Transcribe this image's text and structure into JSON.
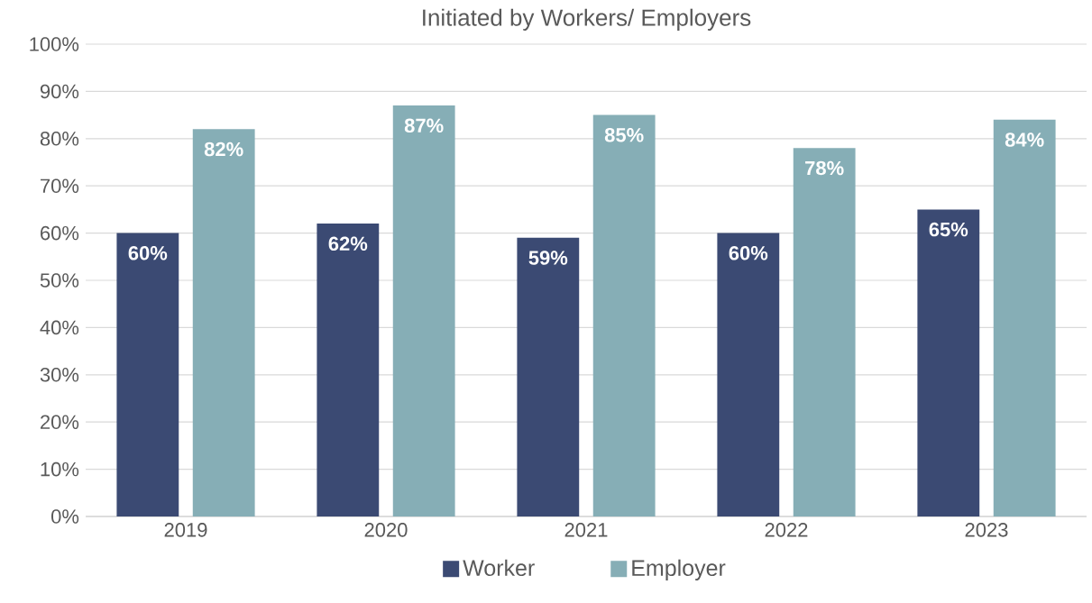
{
  "chart_data": {
    "type": "bar",
    "title": "Initiated by Workers/ Employers",
    "categories": [
      "2019",
      "2020",
      "2021",
      "2022",
      "2023"
    ],
    "series": [
      {
        "name": "Worker",
        "color": "#3b4a73",
        "values": [
          60,
          62,
          59,
          60,
          65
        ],
        "value_labels": [
          "60%",
          "62%",
          "59%",
          "60%",
          "65%"
        ]
      },
      {
        "name": "Employer",
        "color": "#86aeb6",
        "values": [
          82,
          87,
          85,
          78,
          84
        ],
        "value_labels": [
          "82%",
          "87%",
          "85%",
          "78%",
          "84%"
        ]
      }
    ],
    "ylim": [
      0,
      100
    ],
    "yticks": [
      {
        "value": 0,
        "label": "0%"
      },
      {
        "value": 10,
        "label": "10%"
      },
      {
        "value": 20,
        "label": "20%"
      },
      {
        "value": 30,
        "label": "30%"
      },
      {
        "value": 40,
        "label": "40%"
      },
      {
        "value": 50,
        "label": "50%"
      },
      {
        "value": 60,
        "label": "60%"
      },
      {
        "value": 70,
        "label": "70%"
      },
      {
        "value": 80,
        "label": "80%"
      },
      {
        "value": 90,
        "label": "90%"
      },
      {
        "value": 100,
        "label": "100%"
      }
    ],
    "grid": "y",
    "legend": "bottom"
  }
}
